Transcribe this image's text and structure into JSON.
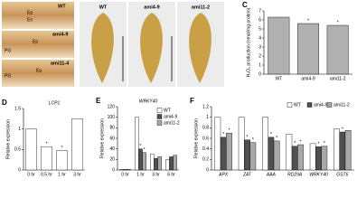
{
  "photo_panels": [
    {
      "panel_label": "A",
      "images": [
        {
          "genotype": "WT",
          "labels": [
            "Ep",
            "En"
          ]
        },
        {
          "genotype": "ami4-9",
          "labels": [
            "Ep",
            "PG"
          ]
        },
        {
          "genotype": "ami11-4",
          "labels": [
            "Ep",
            "PG"
          ]
        }
      ]
    },
    {
      "panel_label": "B",
      "images": [
        {
          "genotype": "WT"
        },
        {
          "genotype": "ami4-9"
        },
        {
          "genotype": "ami11-2"
        }
      ]
    }
  ],
  "chart_data": [
    {
      "type": "bar",
      "panel_label": "C",
      "ylabel": "H₂O₂ production (nmol/mg protein)",
      "categories": [
        "WT",
        "ami4-9",
        "ami11-2"
      ],
      "values": [
        6.3,
        5.6,
        5.4
      ],
      "significance": [
        null,
        "*",
        "*"
      ],
      "color": "#b0b0b0",
      "ylim": [
        0,
        7
      ],
      "yticks": [
        0,
        1,
        2,
        3,
        4,
        5,
        6,
        7
      ]
    },
    {
      "type": "bar",
      "panel_label": "D",
      "title": "LCP1",
      "ylabel": "Relative expression",
      "categories": [
        "0 hr",
        "0.5 hr",
        "1 hr",
        "3 hr"
      ],
      "values": [
        1.0,
        0.57,
        0.47,
        1.25
      ],
      "significance": [
        null,
        "*",
        "*",
        null
      ],
      "color": "#ffffff",
      "ylim": [
        0,
        1.5
      ],
      "yticks": [
        0,
        0.5,
        1,
        1.5
      ]
    },
    {
      "type": "bar",
      "panel_label": "E",
      "title": "WRKY40",
      "ylabel": "Relative expression",
      "categories": [
        "0 hr",
        "1 hr",
        "3 hr",
        "6 hr"
      ],
      "series": [
        {
          "name": "WT",
          "color": "#ffffff",
          "values": [
            1,
            100,
            30,
            20
          ],
          "significance": [
            null,
            null,
            null,
            null
          ]
        },
        {
          "name": "ami4-9",
          "color": "#505050",
          "values": [
            1,
            40,
            22,
            25
          ],
          "significance": [
            null,
            "*",
            null,
            null
          ]
        },
        {
          "name": "ami11-2",
          "color": "#a8a8a8",
          "values": [
            1,
            33,
            25,
            28
          ],
          "significance": [
            null,
            "*",
            null,
            null
          ]
        }
      ],
      "legend": "upper right",
      "ylim": [
        0,
        120
      ],
      "yticks": [
        0,
        20,
        40,
        60,
        80,
        100,
        120
      ]
    },
    {
      "type": "bar",
      "panel_label": "F",
      "ylabel": "Relative expression",
      "categories": [
        "APX",
        "ZAT",
        "AAA",
        "RD29A",
        "WRKY40",
        "GST6"
      ],
      "series": [
        {
          "name": "WT",
          "color": "#ffffff",
          "values": [
            1.0,
            1.0,
            1.0,
            0.68,
            0.5,
            0.78
          ],
          "significance": [
            null,
            null,
            null,
            null,
            null,
            null
          ]
        },
        {
          "name": "ami4-9",
          "color": "#505050",
          "values": [
            0.62,
            0.57,
            0.62,
            0.45,
            0.44,
            0.72
          ],
          "significance": [
            "*",
            "*",
            "*",
            "*",
            "*",
            "*"
          ]
        },
        {
          "name": "ami11-2",
          "color": "#a8a8a8",
          "values": [
            0.7,
            0.52,
            0.55,
            0.48,
            0.45,
            0.75
          ],
          "significance": [
            "*",
            "*",
            "*",
            "*",
            "*",
            null
          ]
        }
      ],
      "legend": "upper center",
      "ylim": [
        0,
        1.2
      ],
      "yticks": [
        0,
        0.2,
        0.4,
        0.6,
        0.8,
        1,
        1.2
      ]
    }
  ]
}
